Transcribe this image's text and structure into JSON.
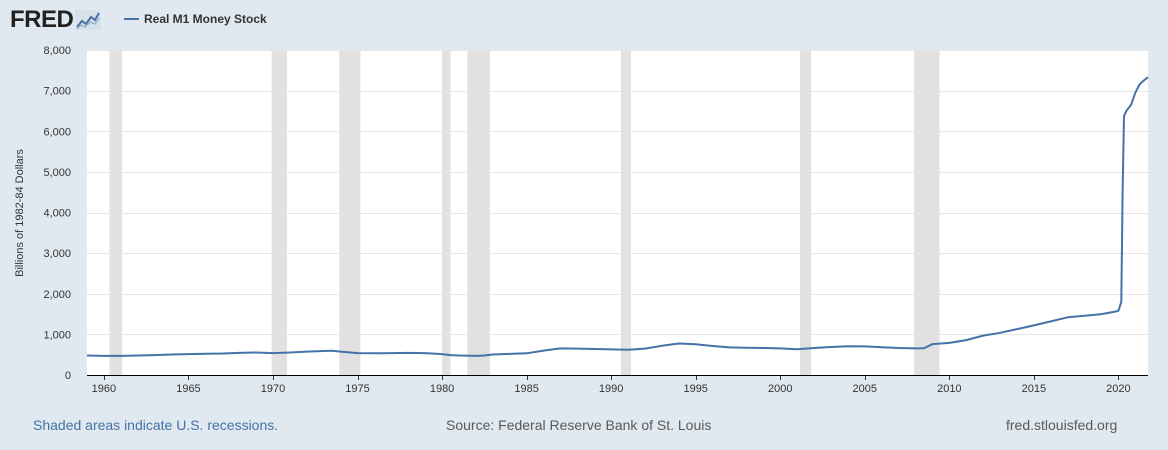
{
  "header": {
    "logo": "FRED",
    "legend_label": "Real M1 Money Stock"
  },
  "footer": {
    "recessions_note": "Shaded areas indicate U.S. recessions.",
    "source": "Source: Federal Reserve Bank of St. Louis",
    "site": "fred.stlouisfed.org"
  },
  "colors": {
    "line": "#4572a7",
    "recession": "#e1e1e1",
    "background": "#e1e9f0",
    "plot": "#ffffff",
    "grid": "#e6e6e6"
  },
  "chart_data": {
    "type": "line",
    "title": "",
    "xlabel": "",
    "ylabel": "Billions of 1982-84 Dollars",
    "xlim": [
      1959.0,
      2021.75
    ],
    "ylim": [
      0,
      8000
    ],
    "x_ticks": [
      1960,
      1965,
      1970,
      1975,
      1980,
      1985,
      1990,
      1995,
      2000,
      2005,
      2010,
      2015,
      2020
    ],
    "y_ticks": [
      0,
      1000,
      2000,
      3000,
      4000,
      5000,
      6000,
      7000,
      8000
    ],
    "y_tick_labels": [
      "0",
      "1,000",
      "2,000",
      "3,000",
      "4,000",
      "5,000",
      "6,000",
      "7,000",
      "8,000"
    ],
    "grid": true,
    "legend": "top-left",
    "recessions": [
      [
        1960.33,
        1961.08
      ],
      [
        1969.92,
        1970.83
      ],
      [
        1973.92,
        1975.17
      ],
      [
        1980.0,
        1980.5
      ],
      [
        1981.5,
        1982.83
      ],
      [
        1990.58,
        1991.17
      ],
      [
        2001.17,
        2001.83
      ],
      [
        2007.92,
        2009.42
      ]
    ],
    "series": [
      {
        "name": "Real M1 Money Stock",
        "points": [
          [
            1959.0,
            480
          ],
          [
            1960.0,
            470
          ],
          [
            1961.0,
            470
          ],
          [
            1962.0,
            480
          ],
          [
            1963.0,
            490
          ],
          [
            1964.0,
            505
          ],
          [
            1965.0,
            515
          ],
          [
            1966.0,
            525
          ],
          [
            1967.0,
            530
          ],
          [
            1968.0,
            545
          ],
          [
            1969.0,
            555
          ],
          [
            1970.0,
            540
          ],
          [
            1971.0,
            555
          ],
          [
            1972.0,
            575
          ],
          [
            1973.0,
            590
          ],
          [
            1973.5,
            595
          ],
          [
            1974.0,
            575
          ],
          [
            1975.0,
            540
          ],
          [
            1976.0,
            535
          ],
          [
            1977.0,
            540
          ],
          [
            1978.0,
            545
          ],
          [
            1979.0,
            540
          ],
          [
            1980.0,
            515
          ],
          [
            1980.5,
            490
          ],
          [
            1981.0,
            480
          ],
          [
            1982.0,
            470
          ],
          [
            1982.5,
            480
          ],
          [
            1983.0,
            505
          ],
          [
            1984.0,
            520
          ],
          [
            1985.0,
            535
          ],
          [
            1986.0,
            600
          ],
          [
            1987.0,
            655
          ],
          [
            1988.0,
            650
          ],
          [
            1989.0,
            640
          ],
          [
            1990.0,
            630
          ],
          [
            1991.0,
            620
          ],
          [
            1992.0,
            650
          ],
          [
            1993.0,
            720
          ],
          [
            1994.0,
            775
          ],
          [
            1995.0,
            755
          ],
          [
            1996.0,
            715
          ],
          [
            1997.0,
            680
          ],
          [
            1998.0,
            670
          ],
          [
            1999.0,
            665
          ],
          [
            2000.0,
            655
          ],
          [
            2001.0,
            635
          ],
          [
            2002.0,
            665
          ],
          [
            2003.0,
            690
          ],
          [
            2004.0,
            710
          ],
          [
            2005.0,
            705
          ],
          [
            2006.0,
            685
          ],
          [
            2007.0,
            665
          ],
          [
            2008.0,
            655
          ],
          [
            2008.5,
            660
          ],
          [
            2009.0,
            760
          ],
          [
            2010.0,
            790
          ],
          [
            2011.0,
            860
          ],
          [
            2012.0,
            970
          ],
          [
            2013.0,
            1040
          ],
          [
            2014.0,
            1130
          ],
          [
            2015.0,
            1220
          ],
          [
            2016.0,
            1320
          ],
          [
            2017.0,
            1420
          ],
          [
            2018.0,
            1460
          ],
          [
            2019.0,
            1500
          ],
          [
            2019.8,
            1560
          ],
          [
            2020.0,
            1580
          ],
          [
            2020.17,
            1800
          ],
          [
            2020.25,
            4500
          ],
          [
            2020.33,
            6380
          ],
          [
            2020.5,
            6520
          ],
          [
            2020.75,
            6650
          ],
          [
            2021.0,
            6950
          ],
          [
            2021.25,
            7150
          ],
          [
            2021.5,
            7250
          ],
          [
            2021.75,
            7330
          ]
        ]
      }
    ]
  }
}
